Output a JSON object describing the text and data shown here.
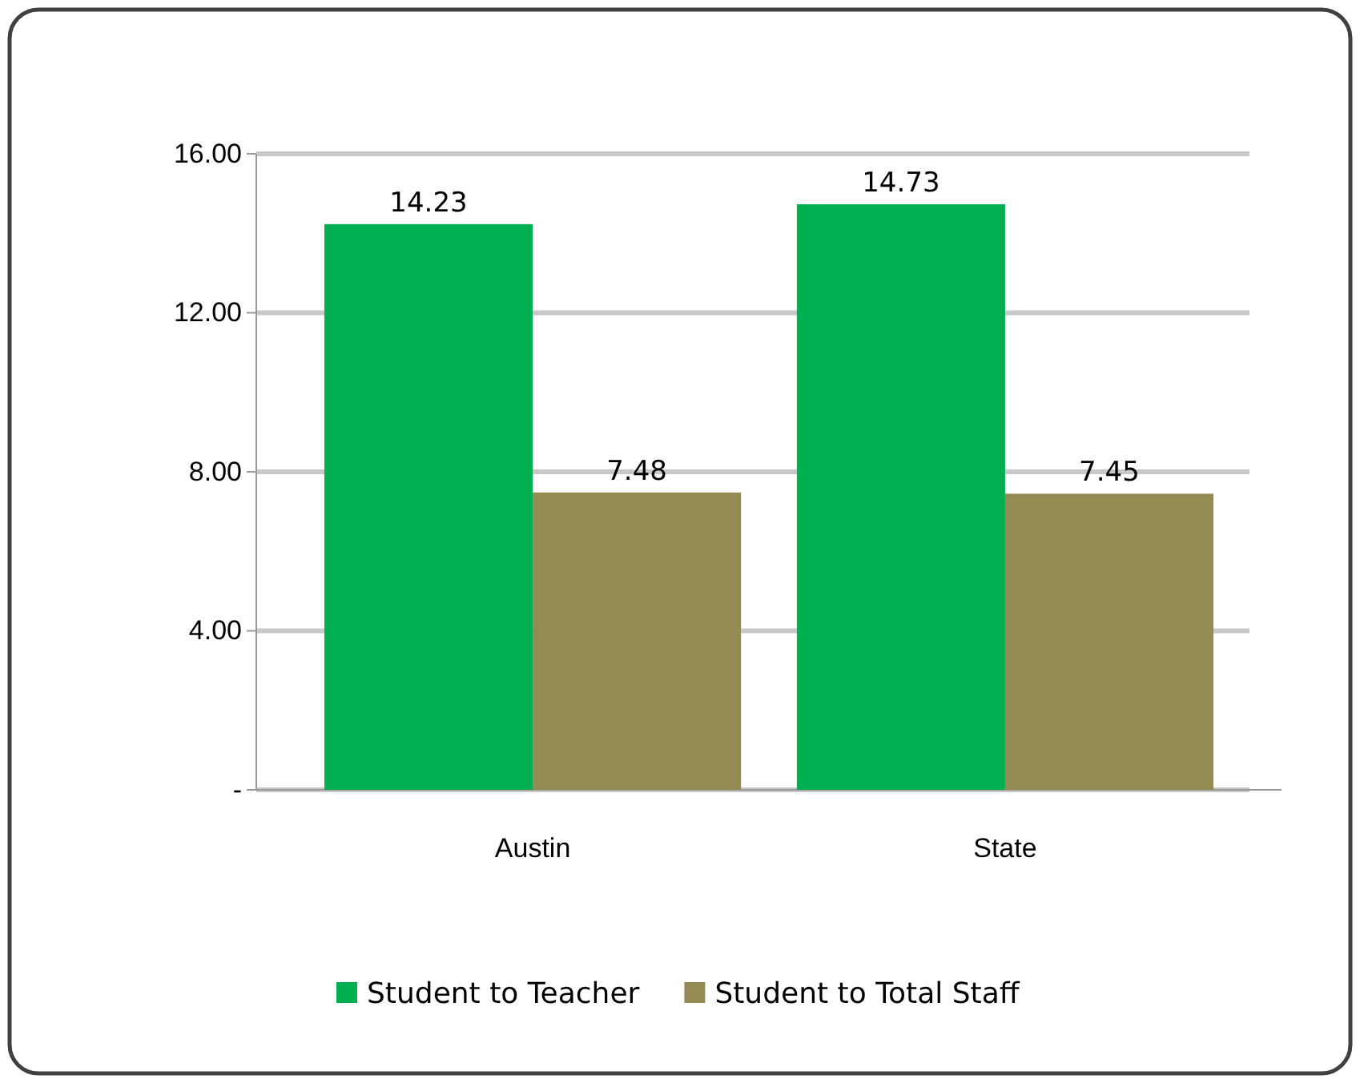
{
  "chart_data": {
    "type": "bar",
    "categories": [
      "Austin",
      "State"
    ],
    "series": [
      {
        "name": "Student to Teacher",
        "color": "#00b050",
        "values": [
          14.23,
          14.73
        ]
      },
      {
        "name": "Student to Total Staff",
        "color": "#948a54",
        "values": [
          7.48,
          7.45
        ]
      }
    ],
    "ylim": [
      0,
      16
    ],
    "yticks": [
      {
        "value": 0,
        "label": "-"
      },
      {
        "value": 4,
        "label": "4.00"
      },
      {
        "value": 8,
        "label": "8.00"
      },
      {
        "value": 12,
        "label": "12.00"
      },
      {
        "value": 16,
        "label": "16.00"
      }
    ],
    "grid": "y",
    "legend": "bottom",
    "data_labels": true
  }
}
